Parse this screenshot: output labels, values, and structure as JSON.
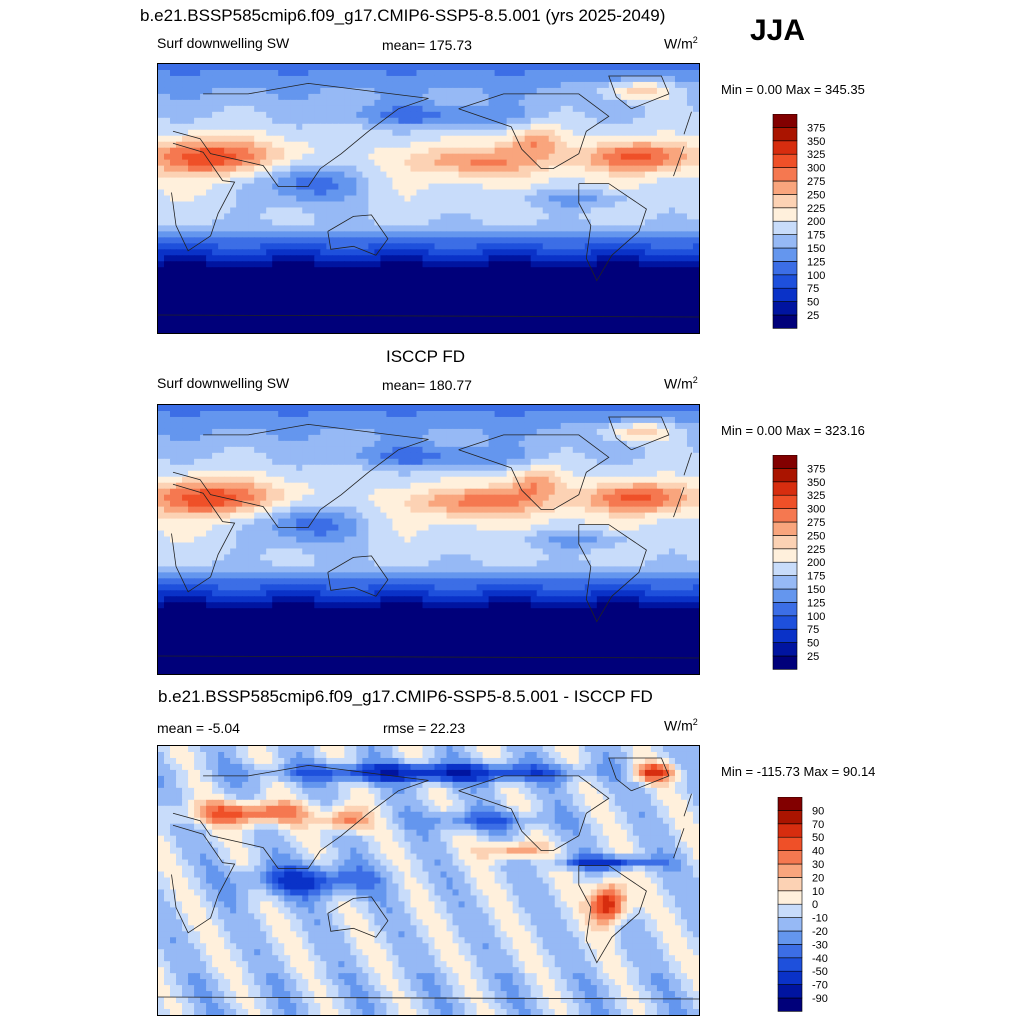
{
  "season": "JJA",
  "panels": [
    {
      "title": "b.e21.BSSP585cmip6.f09_g17.CMIP6-SSP5-8.5.001 (yrs 2025-2049)",
      "left_label": "Surf downwelling SW",
      "center_label": "mean= 175.73",
      "units": "W/m",
      "units_sup": "2",
      "minmax": "Min =   0.00 Max = 345.35"
    },
    {
      "title": "ISCCP FD",
      "left_label": "Surf downwelling SW",
      "center_label": "mean= 180.77",
      "units": "W/m",
      "units_sup": "2",
      "minmax": "Min =   0.00 Max = 323.16"
    },
    {
      "title": "b.e21.BSSP585cmip6.f09_g17.CMIP6-SSP5-8.5.001 - ISCCP FD",
      "left_label": "mean =  -5.04",
      "center_label": "rmse =  22.23",
      "units": "W/m",
      "units_sup": "2",
      "minmax": "Min = -115.73 Max =  90.14"
    }
  ],
  "chart_data": [
    {
      "type": "heatmap",
      "title": "b.e21.BSSP585cmip6.f09_g17.CMIP6-SSP5-8.5.001 (yrs 2025-2049)",
      "variable": "Surf downwelling SW",
      "units": "W/m2",
      "mean": 175.73,
      "min": 0.0,
      "max": 345.35,
      "colorbar_levels": [
        25,
        50,
        75,
        100,
        125,
        150,
        175,
        200,
        225,
        250,
        275,
        300,
        325,
        350,
        375
      ],
      "colors": [
        "#00007a",
        "#0014a0",
        "#0a32c8",
        "#1e50dc",
        "#3c6ee6",
        "#6496ee",
        "#96b9f5",
        "#c8dcfa",
        "#fff0dc",
        "#fcd2b4",
        "#f9a57d",
        "#f57850",
        "#ef5028",
        "#d72d0f",
        "#aa1400",
        "#820000"
      ]
    },
    {
      "type": "heatmap",
      "title": "ISCCP FD",
      "variable": "Surf downwelling SW",
      "units": "W/m2",
      "mean": 180.77,
      "min": 0.0,
      "max": 323.16,
      "colorbar_levels": [
        25,
        50,
        75,
        100,
        125,
        150,
        175,
        200,
        225,
        250,
        275,
        300,
        325,
        350,
        375
      ],
      "colors": [
        "#00007a",
        "#0014a0",
        "#0a32c8",
        "#1e50dc",
        "#3c6ee6",
        "#6496ee",
        "#96b9f5",
        "#c8dcfa",
        "#fff0dc",
        "#fcd2b4",
        "#f9a57d",
        "#f57850",
        "#ef5028",
        "#d72d0f",
        "#aa1400",
        "#820000"
      ]
    },
    {
      "type": "heatmap",
      "title": "b.e21.BSSP585cmip6.f09_g17.CMIP6-SSP5-8.5.001 - ISCCP FD",
      "units": "W/m2",
      "mean": -5.04,
      "rmse": 22.23,
      "min": -115.73,
      "max": 90.14,
      "colorbar_levels": [
        -90,
        -70,
        -50,
        -40,
        -30,
        -20,
        -10,
        0,
        10,
        20,
        30,
        40,
        50,
        70,
        90
      ],
      "colors": [
        "#00007a",
        "#0014a0",
        "#0a32c8",
        "#1e50dc",
        "#3c6ee6",
        "#6496ee",
        "#96b9f5",
        "#c8dcfa",
        "#fff0dc",
        "#fcd2b4",
        "#f9a57d",
        "#f57850",
        "#ef5028",
        "#d72d0f",
        "#aa1400",
        "#820000"
      ]
    }
  ]
}
